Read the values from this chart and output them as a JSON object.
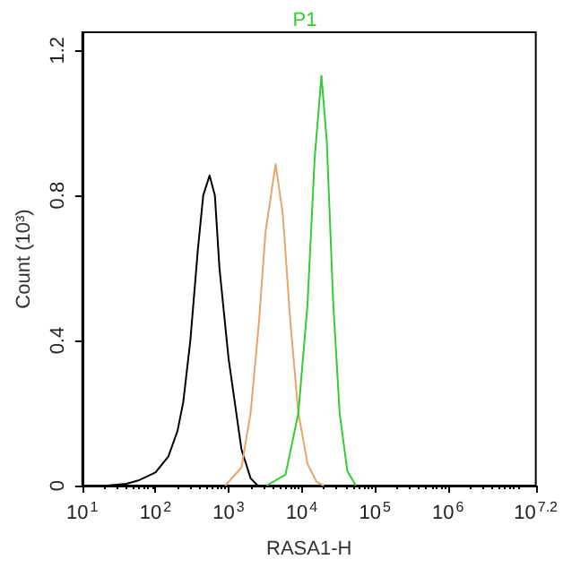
{
  "chart_data": {
    "type": "line",
    "title": "P1",
    "xlabel": "RASA1-H",
    "ylabel": "Count (10³)",
    "log": "x",
    "xlim": [
      10,
      15848932
    ],
    "xticks": [
      {
        "value": 10,
        "label": "10$^{1}$"
      },
      {
        "value": 100,
        "label": "10$^{2}$"
      },
      {
        "value": 1000,
        "label": "10$^{3}$"
      },
      {
        "value": 10000,
        "label": "10$^{4}$"
      },
      {
        "value": 100000,
        "label": "10$^{5}$"
      },
      {
        "value": 1000000,
        "label": "10$^{6}$"
      },
      {
        "value": 15848932,
        "label": "10$^{7.2}$"
      }
    ],
    "ylim": [
      0,
      1.25
    ],
    "yticks": [
      0,
      0.4,
      0.8,
      1.2
    ],
    "grid": false,
    "legend": false,
    "marker": "none",
    "line_style": "solid",
    "series": [
      {
        "color": "#000000",
        "x": [
          22,
          40,
          60,
          100,
          150,
          200,
          240,
          300,
          380,
          450,
          550,
          650,
          750,
          1000,
          1500,
          2000,
          2500
        ],
        "values": [
          0,
          0.005,
          0.015,
          0.036,
          0.08,
          0.15,
          0.23,
          0.4,
          0.65,
          0.8,
          0.855,
          0.8,
          0.6,
          0.35,
          0.1,
          0.02,
          0
        ]
      },
      {
        "color": "#e8a46a",
        "x": [
          900,
          1500,
          2000,
          2600,
          3200,
          4400,
          5500,
          7000,
          9000,
          12000,
          16000,
          20000
        ],
        "values": [
          0,
          0.05,
          0.2,
          0.45,
          0.7,
          0.886,
          0.75,
          0.45,
          0.2,
          0.06,
          0.01,
          0
        ]
      },
      {
        "color": "#33cc33",
        "x": [
          3300,
          6000,
          9000,
          12000,
          15000,
          18600,
          22000,
          27000,
          33000,
          42000,
          55000
        ],
        "values": [
          0,
          0.03,
          0.2,
          0.5,
          0.9,
          1.13,
          0.95,
          0.5,
          0.2,
          0.04,
          0
        ]
      }
    ]
  }
}
